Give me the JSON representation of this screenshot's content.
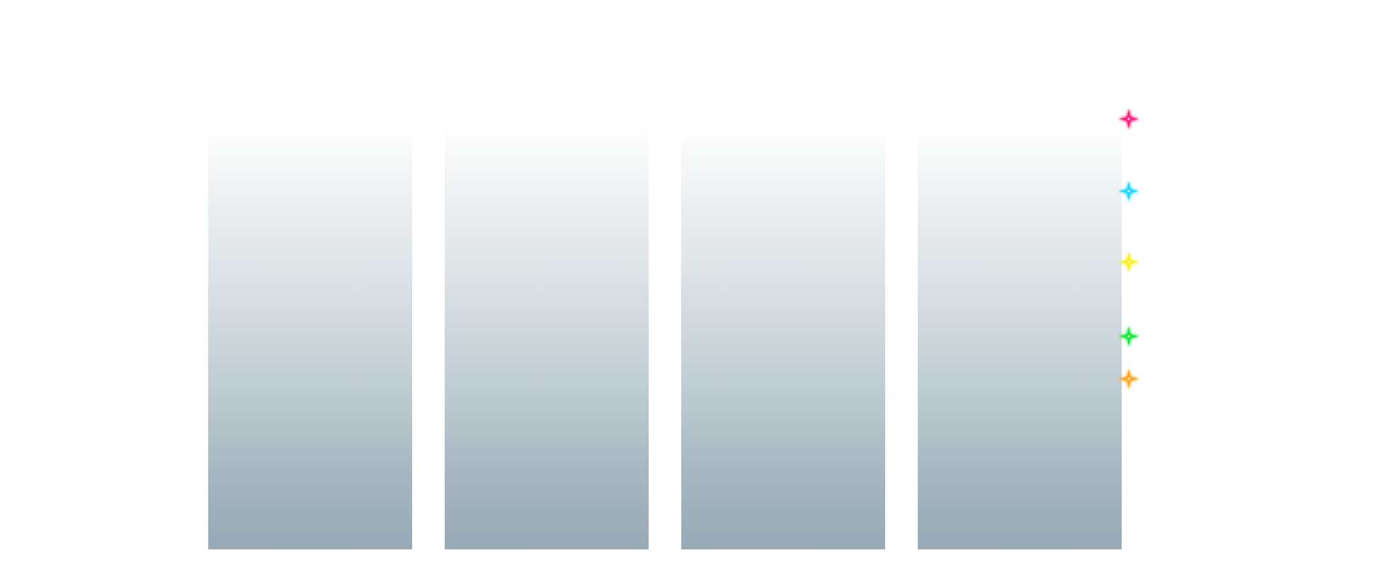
{
  "panels": [
    {
      "id": "panel-1"
    },
    {
      "id": "panel-2"
    },
    {
      "id": "panel-3"
    },
    {
      "id": "panel-4"
    }
  ],
  "sparkles": [
    {
      "name": "sparkle-icon-pink",
      "color": "#ff1f7a"
    },
    {
      "name": "sparkle-icon-cyan",
      "color": "#1fd6ff"
    },
    {
      "name": "sparkle-icon-yellow",
      "color": "#ffee1a"
    },
    {
      "name": "sparkle-icon-green",
      "color": "#18e83a"
    },
    {
      "name": "sparkle-icon-orange",
      "color": "#ffa31a"
    }
  ]
}
